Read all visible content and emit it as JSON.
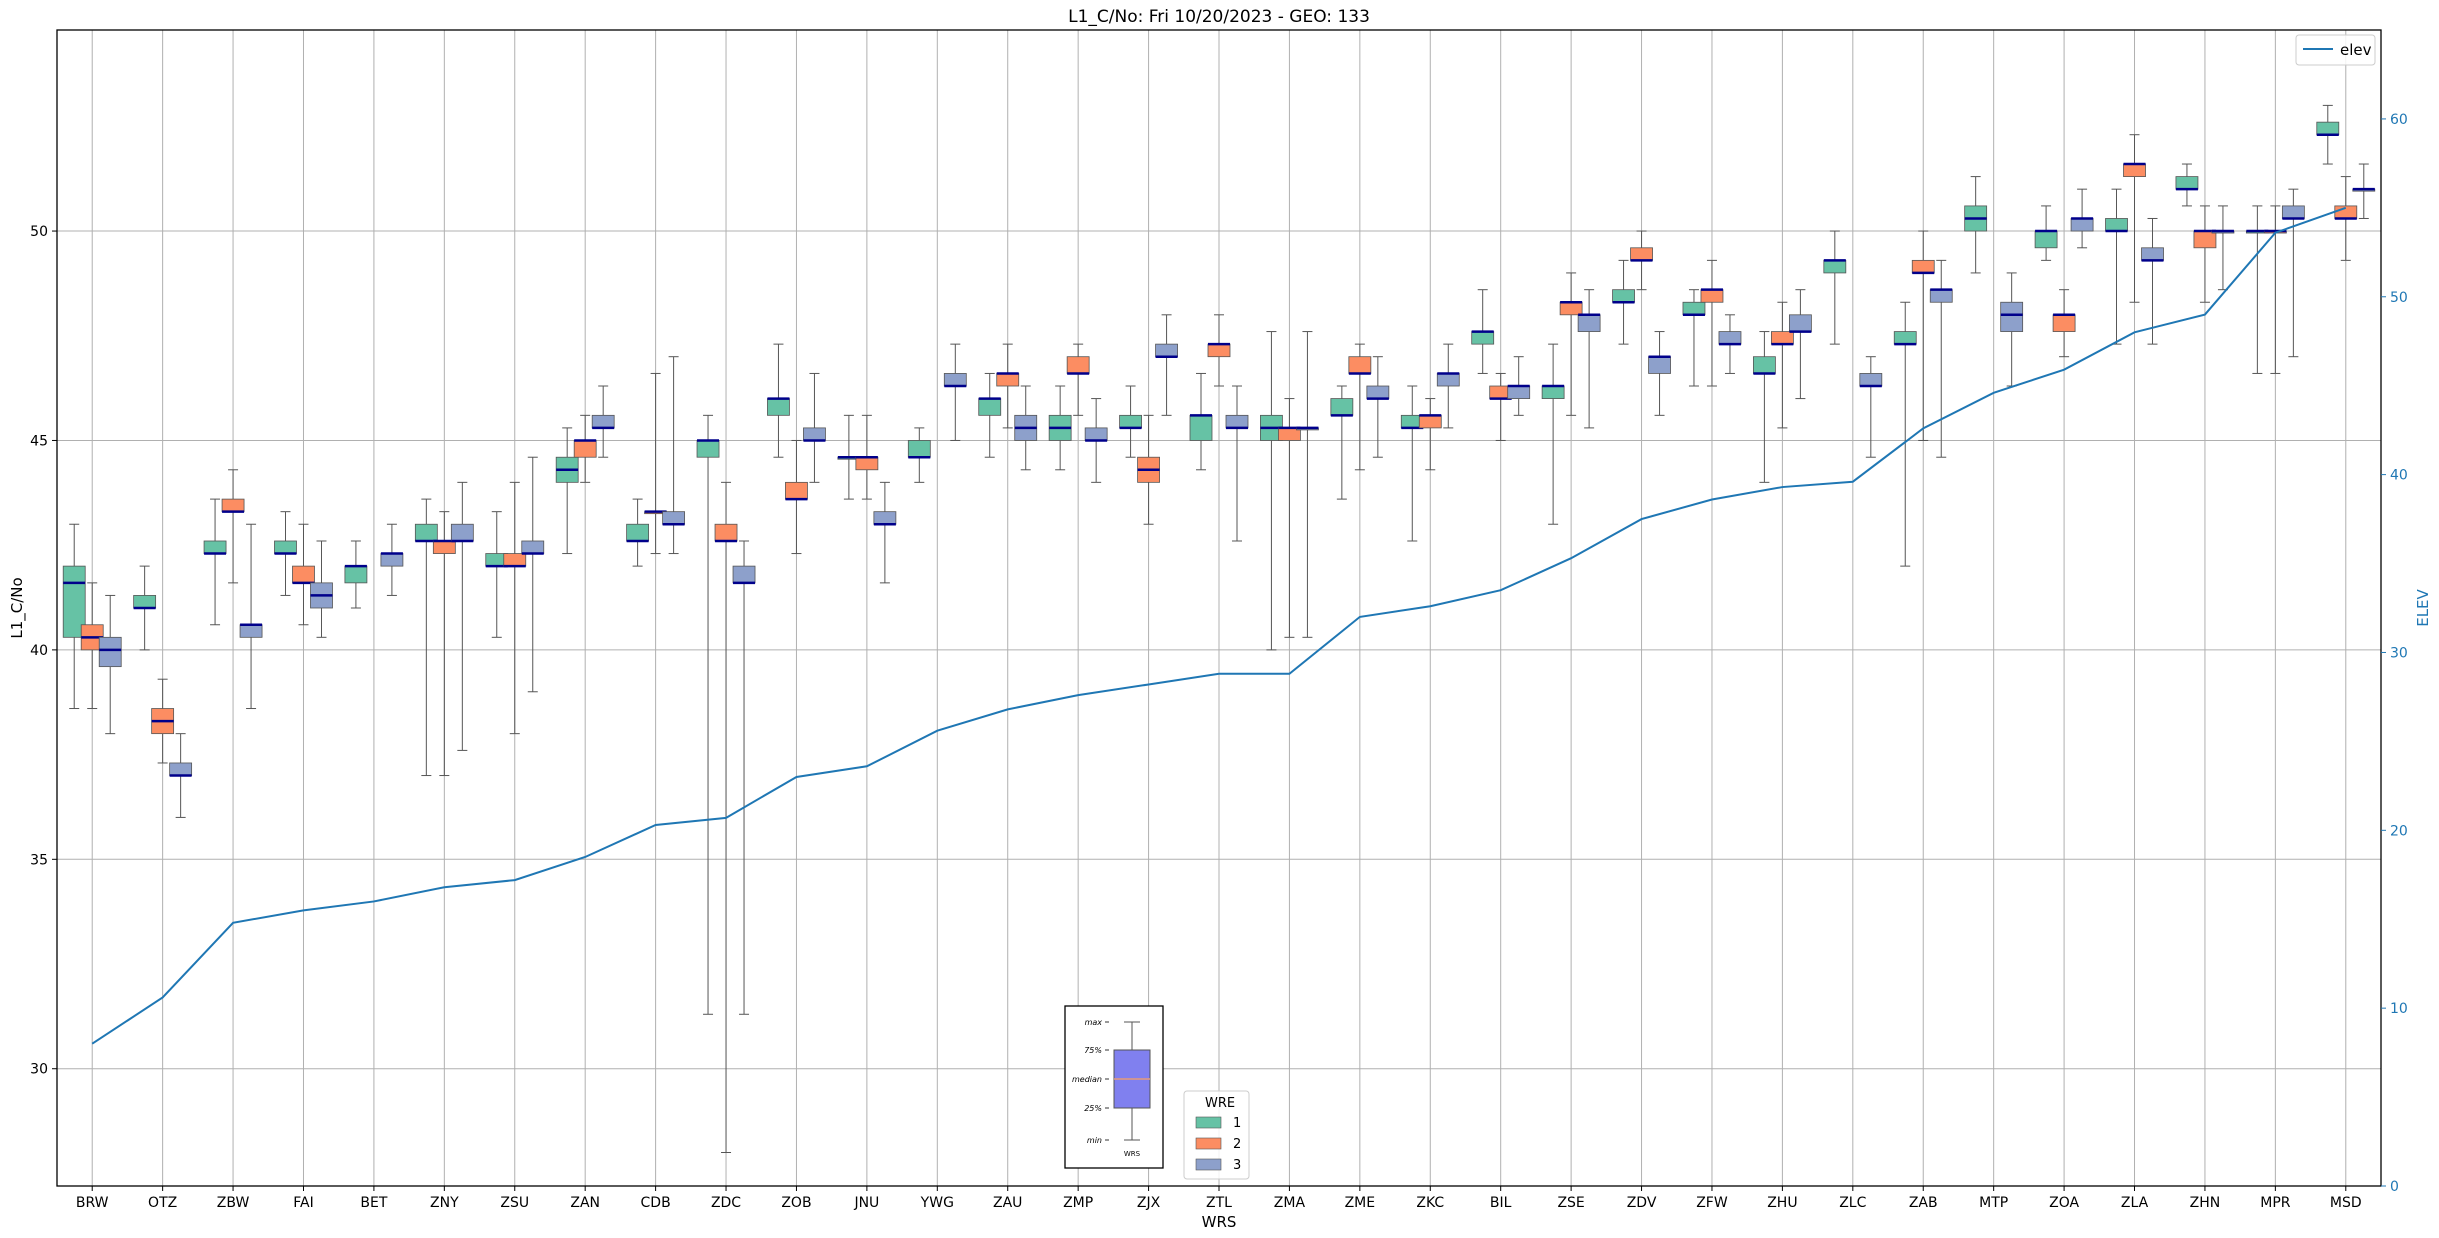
{
  "chart_data": {
    "type": "box",
    "title": "L1_C/No: Fri 10/20/2023 - GEO: 133",
    "xlabel": "WRS",
    "ylabel": "L1_C/No",
    "y2label": "ELEV",
    "ylim": [
      27.2,
      54.8
    ],
    "y2lim": [
      0,
      65
    ],
    "yticks": [
      30,
      35,
      40,
      45,
      50
    ],
    "y2ticks": [
      0,
      10,
      20,
      30,
      40,
      50,
      60
    ],
    "grid": true,
    "categories": [
      "BRW",
      "OTZ",
      "ZBW",
      "FAI",
      "BET",
      "ZNY",
      "ZSU",
      "ZAN",
      "CDB",
      "ZDC",
      "ZOB",
      "JNU",
      "YWG",
      "ZAU",
      "ZMP",
      "ZJX",
      "ZTL",
      "ZMA",
      "ZME",
      "ZKC",
      "BIL",
      "ZSE",
      "ZDV",
      "ZFW",
      "ZHU",
      "ZLC",
      "ZAB",
      "MTP",
      "ZOA",
      "ZLA",
      "ZHN",
      "MPR",
      "MSD"
    ],
    "box_series": [
      {
        "name": "1",
        "color": "#66c2a5",
        "boxes": [
          [
            38.6,
            40.3,
            41.6,
            42.0,
            43.0
          ],
          [
            40.0,
            41.0,
            41.0,
            41.3,
            42.0
          ],
          [
            40.6,
            42.3,
            42.3,
            42.6,
            43.6
          ],
          [
            41.3,
            42.3,
            42.3,
            42.6,
            43.3
          ],
          [
            41.0,
            41.6,
            42.0,
            42.0,
            42.6
          ],
          [
            37.0,
            42.6,
            42.6,
            43.0,
            43.6
          ],
          [
            40.3,
            42.0,
            42.0,
            42.3,
            43.3
          ],
          [
            42.3,
            44.0,
            44.3,
            44.6,
            45.3
          ],
          [
            42.0,
            42.6,
            42.6,
            43.0,
            43.6
          ],
          [
            31.3,
            44.6,
            45.0,
            45.0,
            45.6
          ],
          [
            44.6,
            45.6,
            46.0,
            46.0,
            47.3
          ],
          [
            43.6,
            44.6,
            44.6,
            44.6,
            45.6
          ],
          [
            44.0,
            44.6,
            44.6,
            45.0,
            45.3
          ],
          [
            44.6,
            45.6,
            46.0,
            46.0,
            46.6
          ],
          [
            44.3,
            45.0,
            45.3,
            45.6,
            46.3
          ],
          [
            44.6,
            45.3,
            45.3,
            45.6,
            46.3
          ],
          [
            44.3,
            45.0,
            45.6,
            45.6,
            46.6
          ],
          [
            40.0,
            45.0,
            45.3,
            45.6,
            47.6
          ],
          [
            43.6,
            45.6,
            45.6,
            46.0,
            46.3
          ],
          [
            42.6,
            45.3,
            45.3,
            45.6,
            46.3
          ],
          [
            46.6,
            47.3,
            47.6,
            47.6,
            48.6
          ],
          [
            43.0,
            46.0,
            46.3,
            46.3,
            47.3
          ],
          [
            47.3,
            48.3,
            48.3,
            48.6,
            49.3
          ],
          [
            46.3,
            48.0,
            48.0,
            48.3,
            48.6
          ],
          [
            44.0,
            46.6,
            46.6,
            47.0,
            47.6
          ],
          [
            47.3,
            49.0,
            49.3,
            49.3,
            50.0
          ],
          [
            42.0,
            47.3,
            47.3,
            47.6,
            48.3
          ],
          [
            49.0,
            50.0,
            50.3,
            50.6,
            51.3
          ],
          [
            49.3,
            49.6,
            50.0,
            50.0,
            50.6
          ],
          [
            47.3,
            50.0,
            50.0,
            50.3,
            51.0
          ],
          [
            50.6,
            51.0,
            51.0,
            51.3,
            51.6
          ],
          [
            46.6,
            50.0,
            50.0,
            50.0,
            50.6
          ],
          [
            51.6,
            52.3,
            52.3,
            52.6,
            53.0
          ]
        ]
      },
      {
        "name": "2",
        "color": "#fc8d62",
        "boxes": [
          [
            38.6,
            40.0,
            40.3,
            40.6,
            41.6
          ],
          [
            37.3,
            38.0,
            38.3,
            38.6,
            39.3
          ],
          [
            41.6,
            43.3,
            43.3,
            43.6,
            44.3
          ],
          [
            40.6,
            41.6,
            41.6,
            42.0,
            43.0
          ],
          null,
          [
            37.0,
            42.3,
            42.6,
            42.6,
            43.3
          ],
          [
            38.0,
            42.0,
            42.0,
            42.3,
            44.0
          ],
          [
            44.0,
            44.6,
            45.0,
            45.0,
            45.6
          ],
          [
            42.3,
            43.3,
            43.3,
            43.3,
            46.6
          ],
          [
            28.0,
            42.6,
            42.6,
            43.0,
            44.0
          ],
          [
            42.3,
            43.6,
            43.6,
            44.0,
            45.0
          ],
          [
            43.6,
            44.3,
            44.6,
            44.6,
            45.6
          ],
          null,
          [
            45.3,
            46.3,
            46.6,
            46.6,
            47.3
          ],
          [
            45.6,
            46.6,
            46.6,
            47.0,
            47.3
          ],
          [
            43.0,
            44.0,
            44.3,
            44.6,
            45.6
          ],
          [
            46.3,
            47.0,
            47.3,
            47.3,
            48.0
          ],
          [
            40.3,
            45.0,
            45.3,
            45.3,
            46.0
          ],
          [
            44.3,
            46.6,
            46.6,
            47.0,
            47.3
          ],
          [
            44.3,
            45.3,
            45.6,
            45.6,
            46.0
          ],
          [
            45.0,
            46.0,
            46.0,
            46.3,
            46.6
          ],
          [
            45.6,
            48.0,
            48.3,
            48.3,
            49.0
          ],
          [
            48.6,
            49.3,
            49.3,
            49.6,
            50.0
          ],
          [
            46.3,
            48.3,
            48.6,
            48.6,
            49.3
          ],
          [
            45.3,
            47.3,
            47.3,
            47.6,
            48.3
          ],
          null,
          [
            45.0,
            49.0,
            49.0,
            49.3,
            50.0
          ],
          null,
          [
            47.0,
            47.6,
            48.0,
            48.0,
            48.6
          ],
          [
            48.3,
            51.3,
            51.6,
            51.6,
            52.3
          ],
          [
            48.3,
            49.6,
            50.0,
            50.0,
            50.6
          ],
          [
            46.6,
            50.0,
            50.0,
            50.0,
            50.6
          ],
          [
            49.3,
            50.3,
            50.3,
            50.6,
            51.3
          ]
        ]
      },
      {
        "name": "3",
        "color": "#8da0cb",
        "boxes": [
          [
            38.0,
            39.6,
            40.0,
            40.3,
            41.3
          ],
          [
            36.0,
            37.0,
            37.0,
            37.3,
            38.0
          ],
          [
            38.6,
            40.3,
            40.6,
            40.6,
            43.0
          ],
          [
            40.3,
            41.0,
            41.3,
            41.6,
            42.6
          ],
          [
            41.3,
            42.0,
            42.3,
            42.3,
            43.0
          ],
          [
            37.6,
            42.6,
            42.6,
            43.0,
            44.0
          ],
          [
            39.0,
            42.3,
            42.3,
            42.6,
            44.6
          ],
          [
            44.6,
            45.3,
            45.3,
            45.6,
            46.3
          ],
          [
            42.3,
            43.0,
            43.0,
            43.3,
            47.0
          ],
          [
            31.3,
            41.6,
            41.6,
            42.0,
            42.6
          ],
          [
            44.0,
            45.0,
            45.0,
            45.3,
            46.6
          ],
          [
            41.6,
            43.0,
            43.0,
            43.3,
            44.0
          ],
          [
            45.0,
            46.3,
            46.3,
            46.6,
            47.3
          ],
          [
            44.3,
            45.0,
            45.3,
            45.6,
            46.3
          ],
          [
            44.0,
            45.0,
            45.0,
            45.3,
            46.0
          ],
          [
            45.6,
            47.0,
            47.0,
            47.3,
            48.0
          ],
          [
            42.6,
            45.3,
            45.3,
            45.6,
            46.3
          ],
          [
            40.3,
            45.3,
            45.3,
            45.3,
            47.6
          ],
          [
            44.6,
            46.0,
            46.0,
            46.3,
            47.0
          ],
          [
            45.3,
            46.3,
            46.6,
            46.6,
            47.3
          ],
          [
            45.6,
            46.0,
            46.3,
            46.3,
            47.0
          ],
          [
            45.3,
            47.6,
            48.0,
            48.0,
            48.6
          ],
          [
            45.6,
            46.6,
            47.0,
            47.0,
            47.6
          ],
          [
            46.6,
            47.3,
            47.3,
            47.6,
            48.0
          ],
          [
            46.0,
            47.6,
            47.6,
            48.0,
            48.6
          ],
          [
            44.6,
            46.3,
            46.3,
            46.6,
            47.0
          ],
          [
            44.6,
            48.3,
            48.6,
            48.6,
            49.3
          ],
          [
            46.3,
            47.6,
            48.0,
            48.3,
            49.0
          ],
          [
            49.6,
            50.0,
            50.3,
            50.3,
            51.0
          ],
          [
            47.3,
            49.3,
            49.3,
            49.6,
            50.3
          ],
          [
            48.6,
            50.0,
            50.0,
            50.0,
            50.6
          ],
          [
            47.0,
            50.3,
            50.3,
            50.6,
            51.0
          ],
          [
            50.3,
            51.0,
            51.0,
            51.0,
            51.6
          ]
        ]
      }
    ],
    "line_series": {
      "name": "elev",
      "axis": "right",
      "color": "#1f77b4",
      "values": [
        8.0,
        10.6,
        14.8,
        15.5,
        16.0,
        16.8,
        17.2,
        18.5,
        20.3,
        20.7,
        23.0,
        23.6,
        25.6,
        26.8,
        27.6,
        28.2,
        28.8,
        28.8,
        32.0,
        32.6,
        33.5,
        35.3,
        37.5,
        38.6,
        39.3,
        39.6,
        42.6,
        44.6,
        45.9,
        48.0,
        49.0,
        53.6,
        55.0
      ]
    },
    "legend_line": {
      "label": "elev",
      "position": "upper right"
    },
    "legend_boxes": {
      "title": "WRE",
      "labels": [
        "1",
        "2",
        "3"
      ],
      "position": "lower center"
    },
    "key_box": {
      "labels": [
        "max",
        "75%",
        "median",
        "25%",
        "min"
      ],
      "xlabel": "WRS",
      "color": "#8080ef"
    }
  }
}
